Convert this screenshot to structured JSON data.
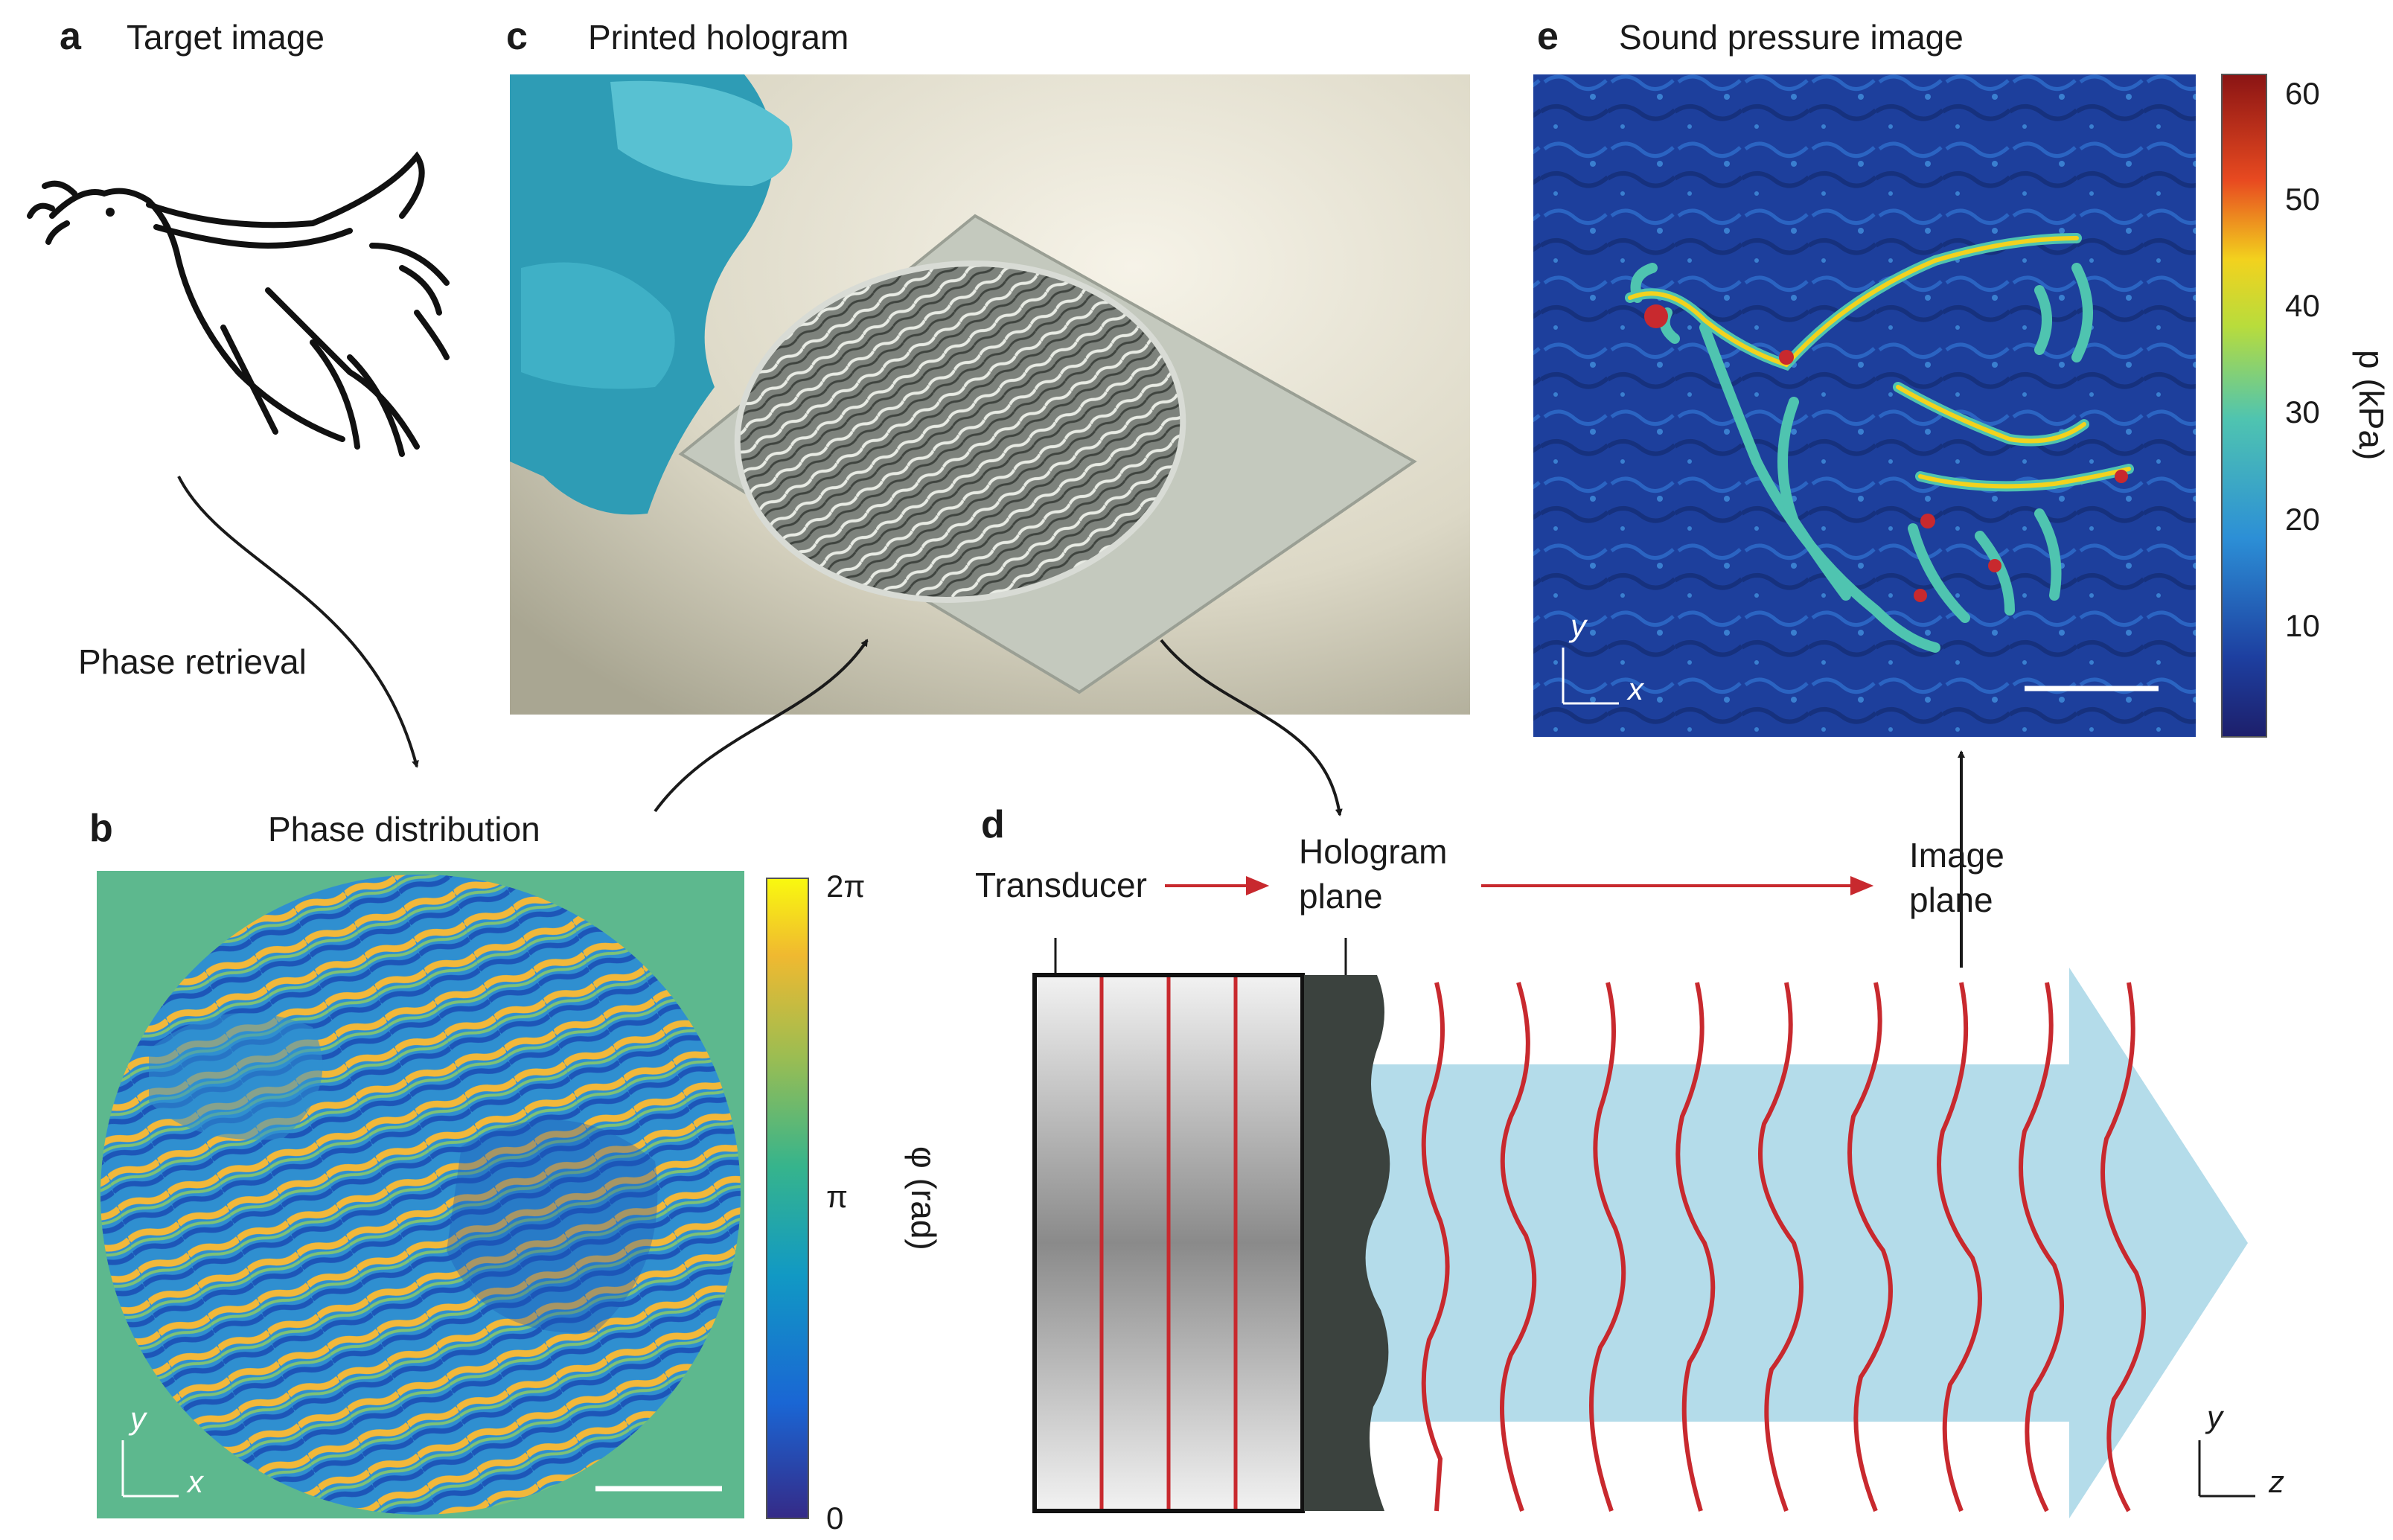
{
  "panels": {
    "a": {
      "letter": "a",
      "title": "Target image"
    },
    "b": {
      "letter": "b",
      "title": "Phase distribution"
    },
    "c": {
      "letter": "c",
      "title": "Printed hologram"
    },
    "d": {
      "letter": "d"
    },
    "e": {
      "letter": "e",
      "title": "Sound pressure image"
    }
  },
  "arrows": {
    "phase_retrieval": "Phase retrieval"
  },
  "colorbar_phase": {
    "ticks": [
      "0",
      "π",
      "2π"
    ],
    "label": "φ (rad)"
  },
  "colorbar_pressure": {
    "ticks": [
      "10",
      "20",
      "30",
      "40",
      "50",
      "60"
    ],
    "label": "p (kPa)"
  },
  "axes": {
    "x": "x",
    "y": "y",
    "z": "z"
  },
  "setup": {
    "transducer": "Transducer",
    "hologram_line1": "Hologram",
    "hologram_line2": "plane",
    "image_line1": "Image",
    "image_line2": "plane"
  },
  "colors": {
    "phase_bg": "#5db88e",
    "pressure_bg": "#1c3d9a",
    "wave_red": "#c8292e",
    "beam_blue": "#b4dcea",
    "hologram_dark": "#3b423e"
  }
}
